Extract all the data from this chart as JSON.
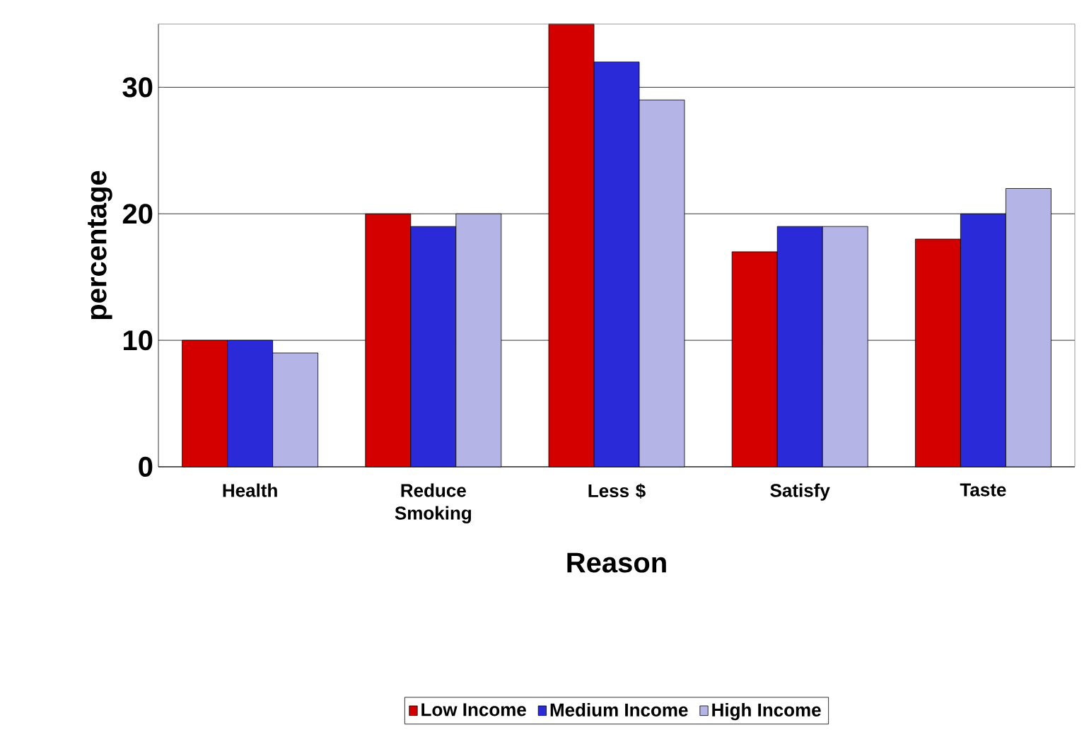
{
  "chart_data": {
    "type": "bar",
    "xlabel": "Reason",
    "ylabel": "percentage",
    "categories": [
      "Health",
      "Reduce Smoking",
      "Less $",
      "Satisfy",
      "Taste"
    ],
    "series": [
      {
        "name": "Low Income",
        "color": "#d40000",
        "values": [
          10,
          20,
          35,
          17,
          18
        ]
      },
      {
        "name": "Medium Income",
        "color": "#2a2ad8",
        "values": [
          10,
          19,
          32,
          19,
          20
        ]
      },
      {
        "name": "High Income",
        "color": "#b4b4e6",
        "values": [
          9,
          20,
          29,
          19,
          22
        ]
      }
    ],
    "ylim": [
      0,
      35
    ],
    "yticks": [
      0,
      10,
      20,
      30
    ],
    "grid": "y",
    "legend": "bottom"
  }
}
